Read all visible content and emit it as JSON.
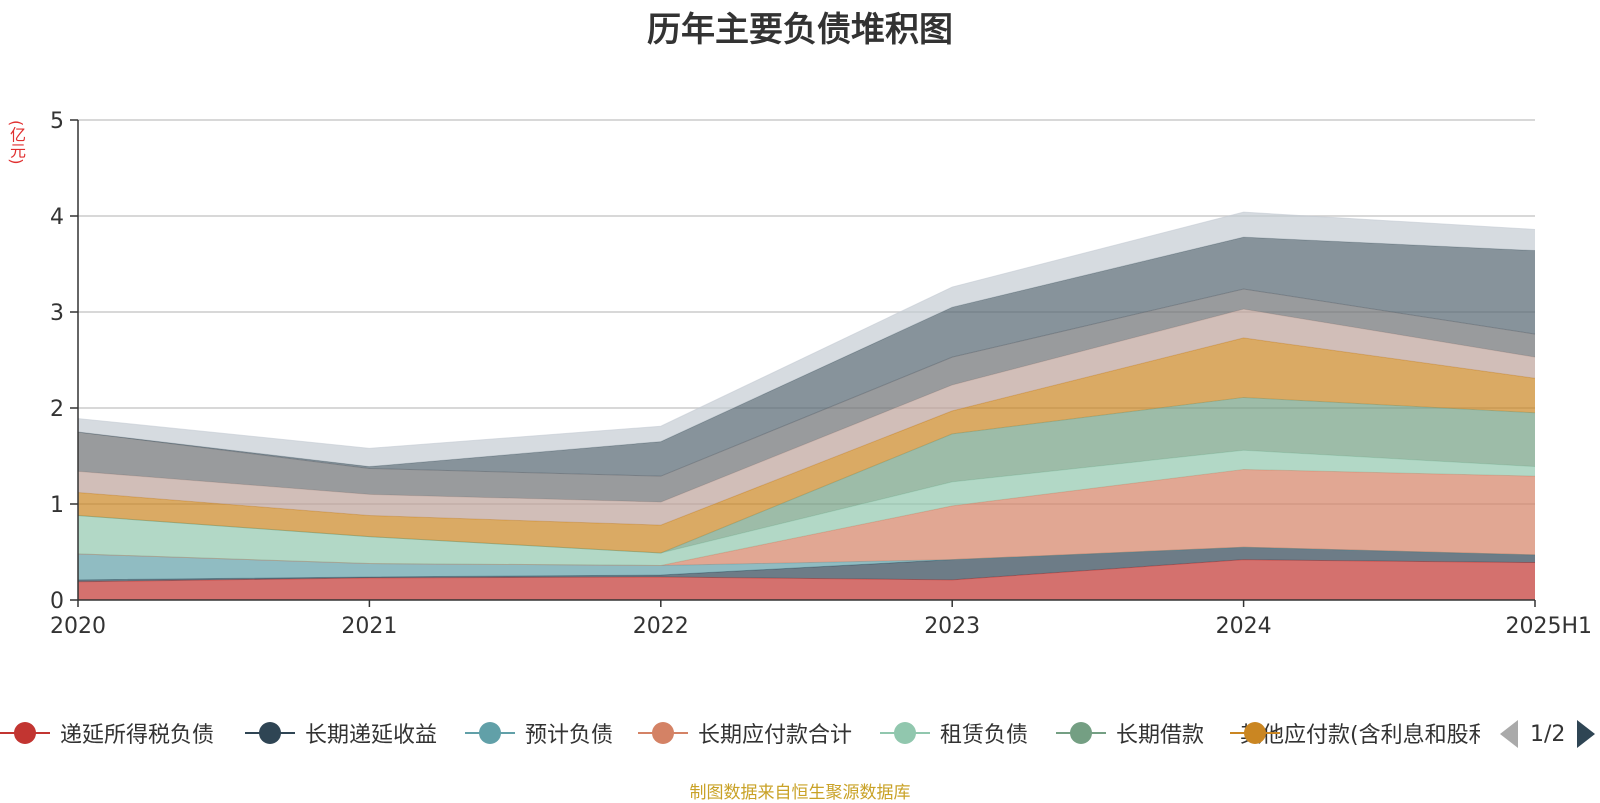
{
  "chart_data": {
    "type": "area",
    "stacked": true,
    "title": "历年主要负债堆积图",
    "ylabel": "(亿元)",
    "categories": [
      "2020",
      "2021",
      "2022",
      "2023",
      "2024",
      "2025H1"
    ],
    "yticks": [
      "0",
      "1",
      "2",
      "3",
      "4",
      "5"
    ],
    "ylim": [
      0,
      5
    ],
    "grid": true,
    "legend_position": "bottom",
    "series": [
      {
        "name": "递延所得税负债",
        "color": "#c23531",
        "values": [
          0.19,
          0.23,
          0.24,
          0.21,
          0.42,
          0.39
        ]
      },
      {
        "name": "长期递延收益",
        "color": "#2f4554",
        "values": [
          0.02,
          0.01,
          0.02,
          0.21,
          0.13,
          0.08
        ]
      },
      {
        "name": "预计负债",
        "color": "#61a0a8",
        "values": [
          0.27,
          0.14,
          0.1,
          0.0,
          0.0,
          0.0
        ]
      },
      {
        "name": "长期应付款合计",
        "color": "#d48265",
        "values": [
          0.0,
          0.0,
          0.0,
          0.56,
          0.81,
          0.82
        ]
      },
      {
        "name": "租赁负债",
        "color": "#91c7ae",
        "values": [
          0.4,
          0.28,
          0.13,
          0.25,
          0.2,
          0.1
        ]
      },
      {
        "name": "长期借款",
        "color": "#749f83",
        "values": [
          0.0,
          0.0,
          0.0,
          0.5,
          0.55,
          0.56
        ]
      },
      {
        "name": "其他应付款(含利息和股利)",
        "color": "#ca8622",
        "values": [
          0.24,
          0.22,
          0.29,
          0.24,
          0.62,
          0.36
        ]
      },
      {
        "name": "",
        "color": "#bda29a",
        "values": [
          0.22,
          0.22,
          0.24,
          0.27,
          0.3,
          0.22
        ]
      },
      {
        "name": "",
        "color": "#6e7074",
        "values": [
          0.41,
          0.27,
          0.27,
          0.29,
          0.21,
          0.24
        ]
      },
      {
        "name": "",
        "color": "#546570",
        "values": [
          0.0,
          0.02,
          0.36,
          0.52,
          0.54,
          0.87
        ]
      },
      {
        "name": "",
        "color": "#c4ccd3",
        "values": [
          0.14,
          0.19,
          0.16,
          0.21,
          0.26,
          0.22
        ]
      }
    ]
  },
  "legend": {
    "items": [
      {
        "label": "递延所得税负债",
        "color": "#c23531"
      },
      {
        "label": "长期递延收益",
        "color": "#2f4554"
      },
      {
        "label": "预计负债",
        "color": "#61a0a8"
      },
      {
        "label": "长期应付款合计",
        "color": "#d48265"
      },
      {
        "label": "租赁负债",
        "color": "#91c7ae"
      },
      {
        "label": "长期借款",
        "color": "#749f83"
      },
      {
        "label": "其他应付款(含利息和股利)",
        "color": "#ca8622"
      }
    ],
    "page_indicator": "1/2"
  },
  "source_note": "制图数据来自恒生聚源数据库"
}
